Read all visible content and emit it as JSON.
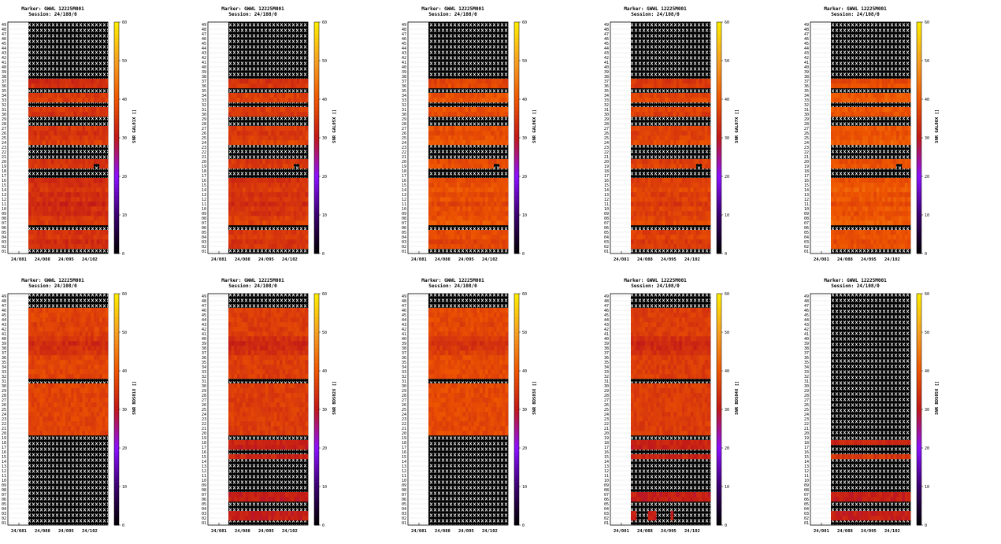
{
  "figure": {
    "marker": "Marker: GWWL 12225M001",
    "session": "Session: 24/108/0",
    "x_ticks": [
      "24/081",
      "24/088",
      "24/095",
      "24/102"
    ],
    "colorbar_ticks": [
      0,
      10,
      20,
      30,
      40,
      50,
      60
    ],
    "colormap": [
      "#000000",
      "#3a006e",
      "#8a10ff",
      "#c01818",
      "#ee5500",
      "#f7a020",
      "#ffee00"
    ]
  },
  "chart_data": [
    {
      "type": "heatmap",
      "ylabel": "SNR GAL01X []",
      "zlim": [
        0,
        60
      ],
      "satellites": "01-49",
      "days": "24/081-24/108",
      "no_data_rows": [
        1,
        6,
        17,
        18,
        21,
        22,
        23,
        28,
        29,
        32,
        35,
        38,
        39,
        40,
        41,
        42,
        43,
        44,
        45,
        46,
        47,
        48,
        49
      ],
      "no_data_cells": [
        [
          19,
          23
        ],
        [
          19,
          24
        ]
      ],
      "base_snr": 36,
      "row_snr": {
        "2": 34,
        "3": 33,
        "4": 35,
        "5": 34,
        "7": 36,
        "8": 35,
        "9": 33,
        "10": 34,
        "11": 32,
        "12": 34,
        "13": 33,
        "14": 35,
        "15": 34,
        "16": 33,
        "19": 35,
        "20": 34,
        "24": 36,
        "25": 35,
        "26": 34,
        "27": 35,
        "30": 34,
        "31": 35,
        "33": 36,
        "34": 35,
        "36": 34,
        "37": 33
      }
    },
    {
      "type": "heatmap",
      "ylabel": "SNR GAL05X []",
      "zlim": [
        0,
        60
      ],
      "satellites": "01-49",
      "days": "24/081-24/108",
      "no_data_rows": [
        1,
        6,
        17,
        18,
        21,
        22,
        23,
        28,
        29,
        32,
        35,
        38,
        39,
        40,
        41,
        42,
        43,
        44,
        45,
        46,
        47,
        48,
        49
      ],
      "no_data_cells": [
        [
          19,
          23
        ],
        [
          19,
          24
        ]
      ],
      "base_snr": 37,
      "row_snr": {
        "2": 35,
        "3": 34,
        "4": 36,
        "5": 35,
        "7": 37,
        "8": 36,
        "9": 34,
        "10": 35,
        "11": 33,
        "12": 35,
        "13": 34,
        "14": 36,
        "15": 35,
        "16": 34,
        "19": 36,
        "20": 35,
        "24": 37,
        "25": 36,
        "26": 35,
        "27": 36,
        "30": 35,
        "31": 36,
        "33": 37,
        "34": 36,
        "36": 35,
        "37": 34
      }
    },
    {
      "type": "heatmap",
      "ylabel": "SNR GAL06X []",
      "zlim": [
        0,
        60
      ],
      "satellites": "01-49",
      "days": "24/081-24/108",
      "no_data_rows": [
        1,
        6,
        17,
        18,
        21,
        22,
        23,
        28,
        29,
        32,
        35,
        38,
        39,
        40,
        41,
        42,
        43,
        44,
        45,
        46,
        47,
        48,
        49
      ],
      "no_data_cells": [
        [
          19,
          23
        ],
        [
          19,
          24
        ]
      ],
      "base_snr": 39,
      "row_snr": {
        "2": 38,
        "3": 37,
        "4": 39,
        "5": 38,
        "7": 40,
        "8": 39,
        "9": 38,
        "10": 39,
        "11": 37,
        "12": 39,
        "13": 38,
        "14": 40,
        "15": 39,
        "16": 38,
        "19": 39,
        "20": 38,
        "24": 40,
        "25": 39,
        "26": 38,
        "27": 39,
        "30": 38,
        "31": 39,
        "33": 40,
        "34": 39,
        "36": 38,
        "37": 37
      }
    },
    {
      "type": "heatmap",
      "ylabel": "SNR GAL07X []",
      "zlim": [
        0,
        60
      ],
      "satellites": "01-49",
      "days": "24/081-24/108",
      "no_data_rows": [
        1,
        6,
        17,
        18,
        21,
        22,
        23,
        28,
        29,
        32,
        35,
        38,
        39,
        40,
        41,
        42,
        43,
        44,
        45,
        46,
        47,
        48,
        49
      ],
      "no_data_cells": [
        [
          19,
          23
        ],
        [
          19,
          24
        ]
      ],
      "base_snr": 38,
      "row_snr": {
        "2": 36,
        "3": 35,
        "4": 37,
        "5": 36,
        "7": 38,
        "8": 37,
        "9": 36,
        "10": 37,
        "11": 35,
        "12": 37,
        "13": 36,
        "14": 38,
        "15": 37,
        "16": 36,
        "19": 37,
        "20": 36,
        "24": 38,
        "25": 37,
        "26": 36,
        "27": 37,
        "30": 36,
        "31": 37,
        "33": 38,
        "34": 37,
        "36": 36,
        "37": 35
      }
    },
    {
      "type": "heatmap",
      "ylabel": "SNR GAL08X []",
      "zlim": [
        0,
        60
      ],
      "satellites": "01-49",
      "days": "24/081-24/108",
      "no_data_rows": [
        1,
        6,
        17,
        18,
        21,
        22,
        23,
        28,
        29,
        32,
        35,
        38,
        39,
        40,
        41,
        42,
        43,
        44,
        45,
        46,
        47,
        48,
        49
      ],
      "no_data_cells": [
        [
          19,
          23
        ],
        [
          19,
          24
        ]
      ],
      "base_snr": 40,
      "row_snr": {
        "2": 39,
        "3": 38,
        "4": 40,
        "5": 39,
        "7": 41,
        "8": 40,
        "9": 39,
        "10": 40,
        "11": 38,
        "12": 40,
        "13": 39,
        "14": 41,
        "15": 40,
        "16": 39,
        "19": 40,
        "20": 39,
        "24": 41,
        "25": 40,
        "26": 39,
        "27": 40,
        "30": 39,
        "31": 40,
        "33": 41,
        "34": 40,
        "36": 39,
        "37": 38
      }
    },
    {
      "type": "heatmap",
      "ylabel": "SNR BDS01X []",
      "zlim": [
        0,
        60
      ],
      "satellites": "01-49",
      "days": "24/081-24/108",
      "no_data_rows": [
        1,
        2,
        3,
        4,
        5,
        6,
        7,
        8,
        9,
        10,
        11,
        12,
        13,
        14,
        15,
        16,
        17,
        18,
        19,
        31,
        47,
        48,
        49
      ],
      "no_data_cells": [],
      "base_snr": 37,
      "row_snr": {
        "37": 35,
        "38": 34,
        "39": 33,
        "40": 35,
        "41": 36,
        "42": 37,
        "43": 36
      }
    },
    {
      "type": "heatmap",
      "ylabel": "SNR BDS02X []",
      "zlim": [
        0,
        60
      ],
      "satellites": "01-49",
      "days": "24/081-24/108",
      "no_data_rows": [
        1,
        4,
        5,
        8,
        9,
        10,
        11,
        12,
        13,
        14,
        16,
        19,
        31,
        47,
        48,
        49
      ],
      "no_data_cells": [],
      "base_snr": 36,
      "row_snr": {
        "2": 31,
        "3": 31,
        "6": 31,
        "7": 31,
        "15": 32,
        "17": 31,
        "18": 32,
        "37": 34,
        "38": 33,
        "39": 32,
        "40": 34
      }
    },
    {
      "type": "heatmap",
      "ylabel": "SNR BDS03X []",
      "zlim": [
        0,
        60
      ],
      "satellites": "01-49",
      "days": "24/081-24/108",
      "no_data_rows": [
        1,
        2,
        3,
        4,
        5,
        6,
        7,
        8,
        9,
        10,
        11,
        12,
        13,
        14,
        15,
        16,
        17,
        18,
        19,
        31,
        47,
        48,
        49
      ],
      "no_data_cells": [],
      "base_snr": 38,
      "row_snr": {
        "37": 36,
        "38": 35,
        "39": 34,
        "40": 36,
        "41": 37,
        "42": 38,
        "43": 37
      }
    },
    {
      "type": "heatmap",
      "ylabel": "SNR BDS04X []",
      "zlim": [
        0,
        60
      ],
      "satellites": "01-49",
      "days": "24/081-24/108",
      "no_data_rows": [
        1,
        4,
        5,
        8,
        9,
        10,
        11,
        12,
        13,
        14,
        16,
        19,
        31,
        47,
        48,
        49
      ],
      "no_data_cells": [
        [
          2,
          2
        ],
        [
          2,
          3
        ],
        [
          2,
          4
        ],
        [
          2,
          5
        ],
        [
          2,
          9
        ],
        [
          2,
          10
        ],
        [
          2,
          11
        ],
        [
          2,
          12
        ],
        [
          2,
          13
        ],
        [
          2,
          15
        ],
        [
          2,
          16
        ],
        [
          2,
          17
        ],
        [
          2,
          18
        ],
        [
          2,
          19
        ],
        [
          2,
          20
        ],
        [
          2,
          21
        ],
        [
          2,
          22
        ],
        [
          2,
          23
        ],
        [
          2,
          24
        ],
        [
          2,
          25
        ],
        [
          2,
          26
        ],
        [
          2,
          27
        ],
        [
          3,
          2
        ],
        [
          3,
          3
        ],
        [
          3,
          4
        ],
        [
          3,
          5
        ],
        [
          3,
          9
        ],
        [
          3,
          10
        ],
        [
          3,
          11
        ],
        [
          3,
          12
        ],
        [
          3,
          13
        ],
        [
          3,
          15
        ],
        [
          3,
          16
        ],
        [
          3,
          17
        ],
        [
          3,
          18
        ],
        [
          3,
          19
        ],
        [
          3,
          20
        ],
        [
          3,
          21
        ],
        [
          3,
          22
        ],
        [
          3,
          23
        ],
        [
          3,
          24
        ],
        [
          3,
          25
        ],
        [
          3,
          26
        ],
        [
          3,
          27
        ]
      ],
      "base_snr": 36,
      "row_snr": {
        "2": 31,
        "3": 31,
        "6": 31,
        "7": 31,
        "15": 32,
        "17": 31,
        "18": 32,
        "37": 34,
        "38": 33,
        "39": 32,
        "40": 34
      }
    },
    {
      "type": "heatmap",
      "ylabel": "SNR BDS05X []",
      "zlim": [
        0,
        60
      ],
      "satellites": "01-49",
      "days": "24/081-24/108",
      "no_data_rows": [
        1,
        4,
        5,
        8,
        9,
        10,
        11,
        12,
        13,
        14,
        16,
        17,
        19,
        20,
        21,
        22,
        23,
        24,
        25,
        26,
        27,
        28,
        29,
        30,
        31,
        32,
        33,
        34,
        35,
        36,
        37,
        38,
        39,
        40,
        41,
        42,
        43,
        44,
        45,
        46,
        47,
        48,
        49
      ],
      "no_data_cells": [],
      "base_snr": 33,
      "row_snr": {
        "2": 31,
        "3": 31,
        "6": 31,
        "7": 31,
        "15": 35,
        "18": 32
      }
    }
  ]
}
